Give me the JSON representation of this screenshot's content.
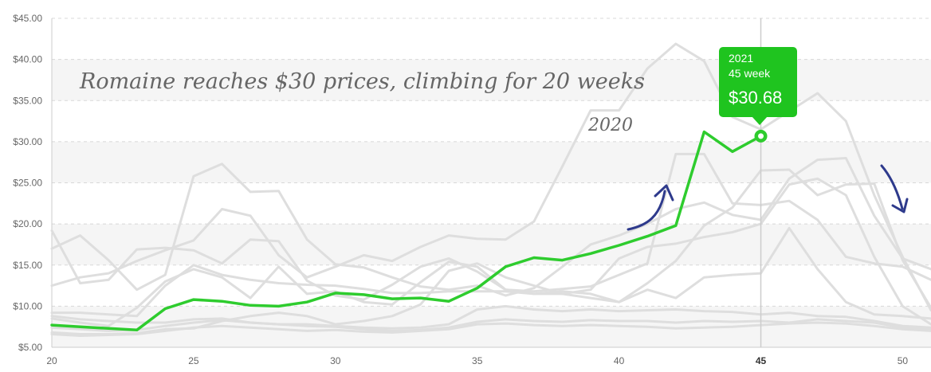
{
  "chart_data": {
    "type": "line",
    "title": "",
    "xlabel": "",
    "ylabel": "",
    "xlim": [
      20,
      51
    ],
    "ylim": [
      5,
      45
    ],
    "x_ticks": [
      "20",
      "25",
      "30",
      "35",
      "40",
      "45",
      "50"
    ],
    "y_ticks": [
      "$5.00",
      "$10.00",
      "$15.00",
      "$20.00",
      "$25.00",
      "$30.00",
      "$35.00",
      "$40.00",
      "$45.00"
    ],
    "grid": "horizontal dashed, alternating bands",
    "highlight_series": {
      "x": [
        20,
        21,
        22,
        23,
        24,
        25,
        26,
        27,
        28,
        29,
        30,
        31,
        32,
        33,
        34,
        35,
        36,
        37,
        38,
        39,
        40,
        41,
        42,
        43,
        44,
        45
      ],
      "values": [
        7.7,
        7.5,
        7.3,
        7.1,
        9.7,
        10.8,
        10.6,
        10.1,
        10.0,
        10.5,
        11.6,
        11.4,
        10.9,
        11.0,
        10.6,
        12.2,
        14.8,
        15.9,
        15.6,
        16.4,
        17.4,
        18.5,
        19.8,
        31.2,
        28.8,
        30.68
      ],
      "color": "#2ecc2e"
    },
    "background_series": [
      {
        "x": [
          20,
          21,
          22,
          23,
          24,
          25,
          26,
          27,
          28,
          29,
          30,
          31,
          32,
          33,
          34,
          35,
          36,
          37,
          38,
          39,
          40,
          41,
          42,
          43,
          44,
          45,
          46,
          47,
          48,
          49,
          50,
          51
        ],
        "values": [
          17.0,
          18.6,
          15.6,
          12.0,
          13.8,
          25.8,
          27.3,
          23.9,
          24.0,
          18.1,
          15.1,
          14.7,
          13.5,
          12.4,
          12.0,
          12.5,
          11.3,
          12.2,
          14.8,
          17.5,
          18.6,
          20.0,
          21.8,
          22.6,
          21.1,
          20.5,
          25.5,
          27.8,
          28.0,
          21.0,
          15.8,
          14.5
        ]
      },
      {
        "x": [
          20,
          21,
          22,
          23,
          24,
          25,
          26,
          27,
          28,
          29,
          30,
          31,
          32,
          33,
          34,
          35,
          36,
          37,
          38,
          39,
          40,
          41,
          42,
          43,
          44,
          45,
          46,
          47,
          48,
          49,
          50,
          51
        ],
        "values": [
          12.5,
          13.5,
          14.0,
          15.5,
          16.8,
          18.0,
          21.8,
          21.0,
          16.2,
          13.5,
          14.8,
          16.2,
          15.5,
          17.2,
          18.6,
          18.2,
          18.1,
          20.3,
          27.0,
          33.8,
          33.8,
          38.9,
          41.9,
          39.8,
          33.0,
          31.5,
          33.7,
          35.9,
          32.5,
          23.5,
          16.0,
          9.5
        ]
      },
      {
        "x": [
          20,
          21,
          22,
          23,
          24,
          25,
          26,
          27,
          28,
          29,
          30,
          31,
          32,
          33,
          34,
          35,
          36,
          37,
          38,
          39,
          40,
          41,
          42,
          43,
          44,
          45,
          46,
          47,
          48,
          49,
          50,
          51
        ],
        "values": [
          19.2,
          12.8,
          13.2,
          16.9,
          17.1,
          16.8,
          15.2,
          18.1,
          17.9,
          13.1,
          11.3,
          10.8,
          12.6,
          14.8,
          15.8,
          14.2,
          12.0,
          11.8,
          12.1,
          12.4,
          13.8,
          15.2,
          28.5,
          28.5,
          22.5,
          22.3,
          22.8,
          20.5,
          16.0,
          15.2,
          14.8,
          13.2
        ]
      },
      {
        "x": [
          20,
          21,
          22,
          23,
          24,
          25,
          26,
          27,
          28,
          29,
          30,
          31,
          32,
          33,
          34,
          35,
          36,
          37,
          38,
          39,
          40,
          41,
          42,
          43,
          44,
          45,
          46,
          47,
          48,
          49,
          50,
          51
        ],
        "values": [
          9.2,
          9.2,
          9.0,
          8.8,
          12.5,
          15.0,
          13.8,
          13.2,
          12.8,
          12.6,
          12.5,
          12.1,
          11.6,
          11.6,
          11.8,
          11.8,
          11.8,
          11.5,
          11.5,
          11.0,
          10.5,
          12.8,
          15.5,
          19.8,
          22.0,
          26.5,
          26.6,
          23.5,
          24.8,
          24.9,
          15.6,
          9.8
        ]
      },
      {
        "x": [
          20,
          21,
          22,
          23,
          24,
          25,
          26,
          27,
          28,
          29,
          30,
          31,
          32,
          33,
          34,
          35,
          36,
          37,
          38,
          39,
          40,
          41,
          42,
          43,
          44,
          45,
          46,
          47,
          48,
          49,
          50,
          51
        ],
        "values": [
          8.5,
          8.0,
          7.6,
          9.8,
          13.0,
          14.5,
          13.5,
          11.0,
          14.8,
          11.5,
          11.8,
          10.5,
          10.2,
          12.9,
          15.4,
          14.8,
          12.0,
          11.5,
          11.8,
          11.5,
          10.5,
          12.0,
          11.0,
          13.5,
          13.8,
          14.0,
          19.5,
          14.5,
          10.5,
          9.0,
          8.8,
          8.5
        ]
      },
      {
        "x": [
          20,
          21,
          22,
          23,
          24,
          25,
          26,
          27,
          28,
          29,
          30,
          31,
          32,
          33,
          34,
          35,
          36,
          37,
          38,
          39,
          40,
          41,
          42,
          43,
          44,
          45,
          46,
          47,
          48,
          49,
          50,
          51
        ],
        "values": [
          6.8,
          6.6,
          6.6,
          6.7,
          7.2,
          7.3,
          8.2,
          8.8,
          9.2,
          8.8,
          7.8,
          8.2,
          8.8,
          10.2,
          14.3,
          15.2,
          13.5,
          12.5,
          11.5,
          12.0,
          15.8,
          17.2,
          17.6,
          18.4,
          19.0,
          20.0,
          24.8,
          25.5,
          23.5,
          16.0,
          10.0,
          7.8
        ]
      },
      {
        "x": [
          20,
          21,
          22,
          23,
          24,
          25,
          26,
          27,
          28,
          29,
          30,
          31,
          32,
          33,
          34,
          35,
          36,
          37,
          38,
          39,
          40,
          41,
          42,
          43,
          44,
          45,
          46,
          47,
          48,
          49,
          50,
          51
        ],
        "values": [
          8.8,
          8.4,
          8.2,
          8.0,
          8.0,
          8.4,
          8.5,
          8.0,
          7.8,
          7.8,
          7.6,
          7.4,
          7.3,
          7.4,
          7.8,
          9.6,
          10.0,
          9.6,
          9.4,
          9.6,
          9.4,
          9.5,
          9.6,
          9.4,
          9.3,
          9.0,
          9.2,
          8.8,
          8.7,
          8.2,
          7.6,
          7.4
        ]
      },
      {
        "x": [
          20,
          21,
          22,
          23,
          24,
          25,
          26,
          27,
          28,
          29,
          30,
          31,
          32,
          33,
          34,
          35,
          36,
          37,
          38,
          39,
          40,
          41,
          42,
          43,
          44,
          45,
          46,
          47,
          48,
          49,
          50,
          51
        ],
        "values": [
          7.4,
          7.2,
          7.0,
          7.1,
          7.6,
          8.0,
          8.3,
          8.0,
          7.8,
          7.6,
          7.5,
          7.2,
          7.0,
          7.1,
          7.4,
          8.1,
          8.4,
          8.2,
          8.1,
          8.3,
          8.2,
          8.2,
          8.0,
          8.2,
          8.1,
          8.2,
          8.0,
          8.4,
          8.2,
          8.0,
          7.4,
          7.2
        ]
      },
      {
        "x": [
          20,
          21,
          22,
          23,
          24,
          25,
          26,
          27,
          28,
          29,
          30,
          31,
          32,
          33,
          34,
          35,
          36,
          37,
          38,
          39,
          40,
          41,
          42,
          43,
          44,
          45,
          46,
          47,
          48,
          49,
          50,
          51
        ],
        "values": [
          6.6,
          6.4,
          6.5,
          6.6,
          7.0,
          7.4,
          7.6,
          7.4,
          7.2,
          7.0,
          7.1,
          6.9,
          6.8,
          7.0,
          7.2,
          7.8,
          7.9,
          7.7,
          7.6,
          7.7,
          7.6,
          7.5,
          7.3,
          7.4,
          7.5,
          7.7,
          7.9,
          8.0,
          7.9,
          7.6,
          7.2,
          7.0
        ]
      }
    ],
    "crosshair_x": 45,
    "tooltip": {
      "year": "2021",
      "week": "45 week",
      "value": "$30.68"
    },
    "annotations": {
      "headline": "Romaine reaches $30 prices, climbing for 20 weeks",
      "year_label": "2020"
    },
    "colors": {
      "highlight": "#2ecc2e",
      "tooltip_bg": "#1fc41f",
      "background_lines": "#dedede",
      "arrow": "#2e3a8c"
    }
  }
}
